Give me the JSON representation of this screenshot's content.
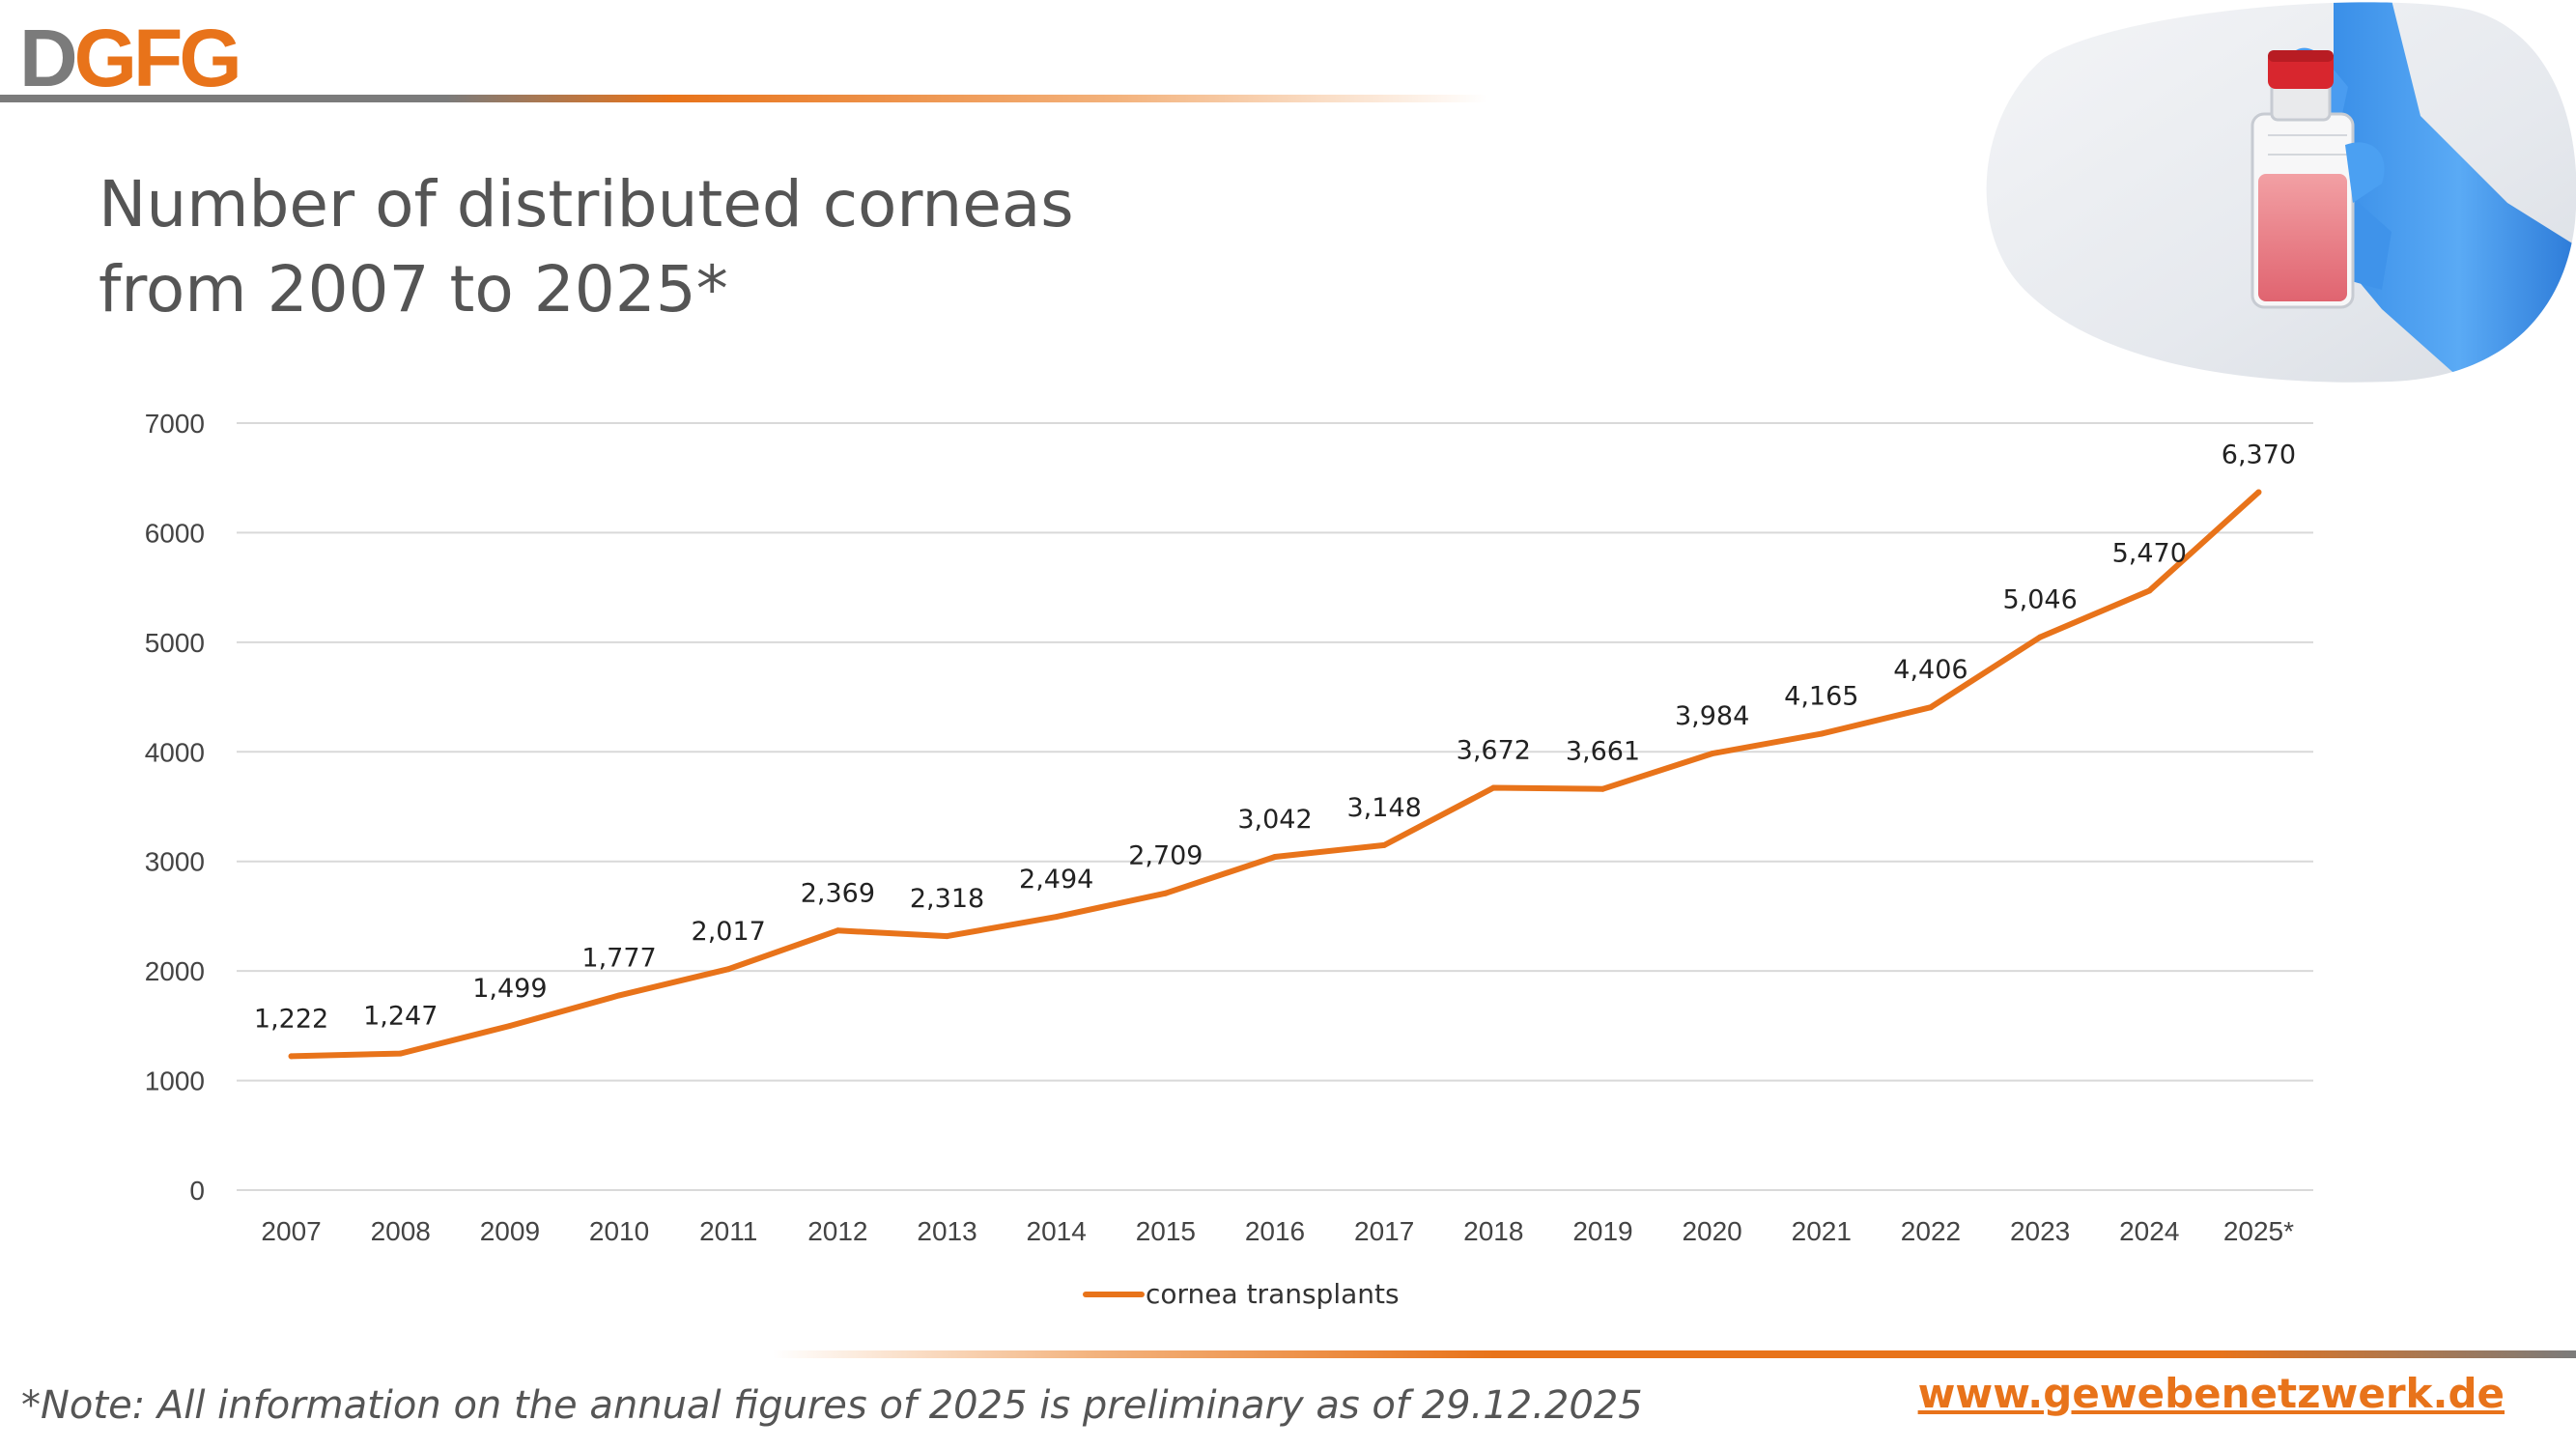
{
  "brand": {
    "logo_d": "D",
    "logo_gfg": "GFG",
    "accent_color": "#e8731a",
    "gray_color": "#7b7b7b"
  },
  "title": {
    "line1": "Number of distributed corneas",
    "line2": "from 2007 to 2025*"
  },
  "photo": {
    "icon": "gloved-hand-holding-flask-icon"
  },
  "footer": {
    "note": "*Note: All information on the annual figures of 2025 is preliminary as of 29.12.2025",
    "website": "www.gewebenetzwerk.de"
  },
  "chart_data": {
    "type": "line",
    "title": "",
    "xlabel": "",
    "ylabel": "",
    "categories": [
      "2007",
      "2008",
      "2009",
      "2010",
      "2011",
      "2012",
      "2013",
      "2014",
      "2015",
      "2016",
      "2017",
      "2018",
      "2019",
      "2020",
      "2021",
      "2022",
      "2023",
      "2024",
      "2025*"
    ],
    "series": [
      {
        "name": "cornea transplants",
        "color": "#e8731a",
        "values": [
          1222,
          1247,
          1499,
          1777,
          2017,
          2369,
          2318,
          2494,
          2709,
          3042,
          3148,
          3672,
          3661,
          3984,
          4165,
          4406,
          5046,
          5470,
          6370
        ],
        "data_labels": [
          "1,222",
          "1,247",
          "1,499",
          "1,777",
          "2,017",
          "2,369",
          "2,318",
          "2,494",
          "2,709",
          "3,042",
          "3,148",
          "3,672",
          "3,661",
          "3,984",
          "4,165",
          "4,406",
          "5,046",
          "5,470",
          "6,370"
        ]
      }
    ],
    "ylim": [
      0,
      7000
    ],
    "yticks": [
      0,
      1000,
      2000,
      3000,
      4000,
      5000,
      6000,
      7000
    ],
    "ytick_labels": [
      "0",
      "1000",
      "2000",
      "3000",
      "4000",
      "5000",
      "6000",
      "7000"
    ],
    "grid": true,
    "legend": "bottom-center"
  }
}
